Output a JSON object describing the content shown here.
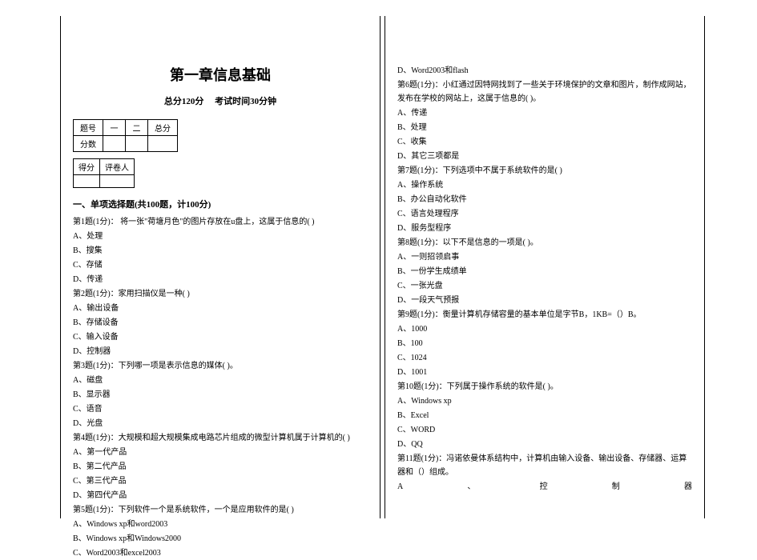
{
  "title": "第一章信息基础",
  "subtitle_score": "总分120分",
  "subtitle_time": "考试时间30分钟",
  "scoreTable": {
    "headers": [
      "题号",
      "一",
      "二",
      "总分"
    ],
    "row2_label": "分数"
  },
  "graderTable": {
    "h1": "得分",
    "h2": "评卷人"
  },
  "section1_title": "一、单项选择题(共100题，计100分)",
  "q1": "第1题(1分)：  将一张\"荷塘月色\"的图片存放在u盘上，这属于信息的( )",
  "q1a": "A、处理",
  "q1b": "B、搜集",
  "q1c": "C、存储",
  "q1d": "D、传递",
  "q2": "第2题(1分)：家用扫描仪是一种( )",
  "q2a": "A、输出设备",
  "q2b": "B、存储设备",
  "q2c": "C、输入设备",
  "q2d": "D、控制器",
  "q3": "第3题(1分)：下列哪一项是表示信息的媒体( )。",
  "q3a": "A、磁盘",
  "q3b": "B、显示器",
  "q3c": "C、语音",
  "q3d": "D、光盘",
  "q4": "第4题(1分)：大规模和超大规模集成电路芯片组成的微型计算机属于计算机的( )",
  "q4a": "A、第一代产品",
  "q4b": "B、第二代产品",
  "q4c": "C、第三代产品",
  "q4d": "D、第四代产品",
  "q5": "第5题(1分)：下列软件一个是系统软件，一个是应用软件的是( )",
  "q5a": "A、Windows xp和word2003",
  "q5b": "B、Windows xp和Windows2000",
  "q5c": "C、Word2003和excel2003",
  "q5d": "D、Word2003和flash",
  "q6": "第6题(1分)：小红通过因特网找到了一些关于环境保护的文章和图片，制作成网站，发布在学校的网站上，这属于信息的( )。",
  "q6a": "A、传递",
  "q6b": "B、处理",
  "q6c": "C、收集",
  "q6d": "D、其它三项都是",
  "q7": "第7题(1分)：下列选项中不属于系统软件的是( )",
  "q7a": "A、操作系统",
  "q7b": "B、办公自动化软件",
  "q7c": "C、语言处理程序",
  "q7d": "D、服务型程序",
  "q8": "第8题(1分)：以下不是信息的一项是( )。",
  "q8a": "A、一则招领启事",
  "q8b": "B、一份学生成绩单",
  "q8c": "C、一张光盘",
  "q8d": "D、一段天气预报",
  "q9": "第9题(1分)：衡量计算机存储容量的基本单位是字节B，1KB=（）B。",
  "q9a": "A、1000",
  "q9b": "B、100",
  "q9c": "C、1024",
  "q9d": "D、1001",
  "q10": "第10题(1分)：下列属于操作系统的软件是( )。",
  "q10a": "A、Windows xp",
  "q10b": "B、Excel",
  "q10c": "C、WORD",
  "q10d": "D、QQ",
  "q11": "第11题(1分)：冯诺依曼体系结构中，计算机由输入设备、输出设备、存储器、运算器和（）组成。",
  "q11a_label": "A",
  "q11a_sep": "、",
  "q11a_c1": "控",
  "q11a_c2": "制",
  "q11a_c3": "器"
}
